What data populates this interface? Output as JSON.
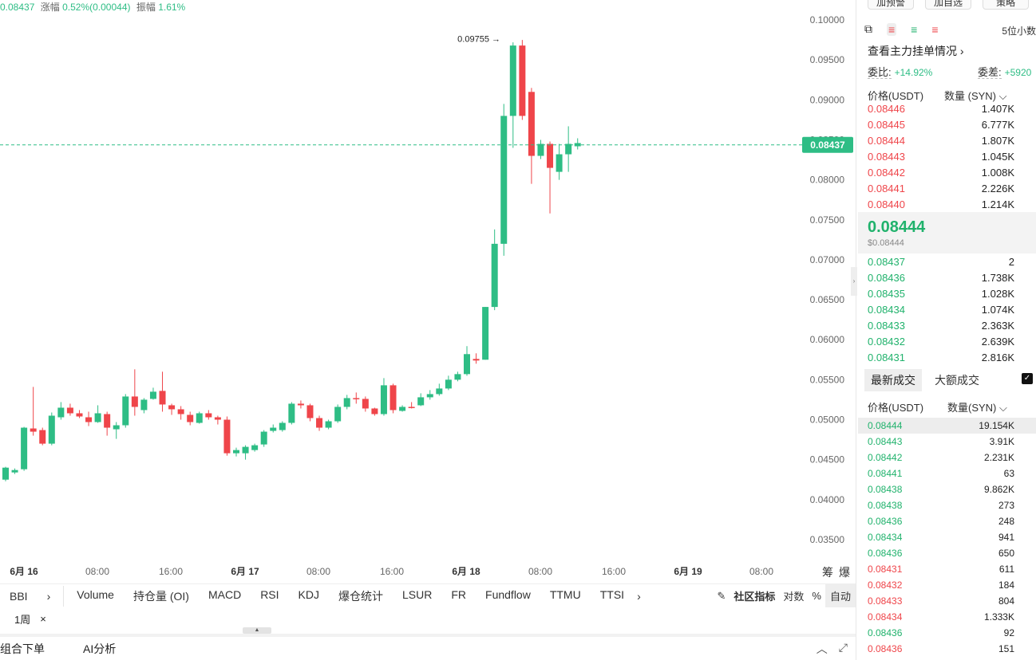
{
  "ticker": {
    "last_price": "0.08437",
    "change_label": "涨幅",
    "change_value": "0.52%(0.00044)",
    "amplitude_label": "振幅",
    "amplitude_value": "1.61%"
  },
  "chart": {
    "high_marker": "0.09755",
    "current_price_tag": "0.08437",
    "y_axis_labels": [
      "0.10000",
      "0.09500",
      "0.09000",
      "0.08500",
      "0.08000",
      "0.07500",
      "0.07000",
      "0.06500",
      "0.06000",
      "0.05500",
      "0.05000",
      "0.04500",
      "0.04000",
      "0.03500"
    ],
    "x_axis_labels": [
      {
        "text": "6月 16",
        "bold": true
      },
      {
        "text": "08:00",
        "bold": false
      },
      {
        "text": "16:00",
        "bold": false
      },
      {
        "text": "6月 17",
        "bold": true
      },
      {
        "text": "08:00",
        "bold": false
      },
      {
        "text": "16:00",
        "bold": false
      },
      {
        "text": "6月 18",
        "bold": true
      },
      {
        "text": "08:00",
        "bold": false
      },
      {
        "text": "16:00",
        "bold": false
      },
      {
        "text": "6月 19",
        "bold": true
      },
      {
        "text": "08:00",
        "bold": false
      }
    ],
    "axis_corner_labels": [
      "筹",
      "爆"
    ],
    "colors": {
      "up": "#2ebd85",
      "down": "#ef454a"
    }
  },
  "chart_data": {
    "type": "candlestick",
    "title": "",
    "y_range": [
      0.033,
      0.1015
    ],
    "series": [
      [
        0.0425,
        0.044,
        0.0423,
        0.0441
      ],
      [
        0.0434,
        0.0437,
        0.0432,
        0.0439
      ],
      [
        0.0438,
        0.049,
        0.0436,
        0.0491
      ],
      [
        0.0489,
        0.0485,
        0.048,
        0.0541
      ],
      [
        0.0487,
        0.047,
        0.0468,
        0.049
      ],
      [
        0.047,
        0.0505,
        0.0468,
        0.0509
      ],
      [
        0.0503,
        0.0515,
        0.05,
        0.0522
      ],
      [
        0.0515,
        0.0508,
        0.0505,
        0.052
      ],
      [
        0.0508,
        0.0504,
        0.0502,
        0.0512
      ],
      [
        0.0503,
        0.0497,
        0.0492,
        0.051
      ],
      [
        0.0497,
        0.0508,
        0.0496,
        0.0518
      ],
      [
        0.0507,
        0.049,
        0.048,
        0.051
      ],
      [
        0.0488,
        0.0493,
        0.0476,
        0.0497
      ],
      [
        0.0493,
        0.0529,
        0.049,
        0.0532
      ],
      [
        0.0529,
        0.0516,
        0.0505,
        0.0563
      ],
      [
        0.0512,
        0.0525,
        0.0508,
        0.0527
      ],
      [
        0.0526,
        0.0535,
        0.0525,
        0.054
      ],
      [
        0.0536,
        0.0519,
        0.051,
        0.056
      ],
      [
        0.0518,
        0.0513,
        0.0506,
        0.052
      ],
      [
        0.0513,
        0.0507,
        0.05,
        0.0517
      ],
      [
        0.0506,
        0.0497,
        0.0493,
        0.051
      ],
      [
        0.0496,
        0.0508,
        0.0495,
        0.051
      ],
      [
        0.0508,
        0.0503,
        0.05,
        0.0512
      ],
      [
        0.0503,
        0.05,
        0.0494,
        0.0505
      ],
      [
        0.05,
        0.0458,
        0.0455,
        0.0504
      ],
      [
        0.0458,
        0.0462,
        0.0454,
        0.0465
      ],
      [
        0.0458,
        0.0466,
        0.045,
        0.0468
      ],
      [
        0.0462,
        0.0468,
        0.046,
        0.047
      ],
      [
        0.0469,
        0.0485,
        0.0466,
        0.0487
      ],
      [
        0.0486,
        0.049,
        0.0484,
        0.0494
      ],
      [
        0.0487,
        0.0496,
        0.0485,
        0.0498
      ],
      [
        0.0496,
        0.052,
        0.0494,
        0.0522
      ],
      [
        0.052,
        0.0518,
        0.0514,
        0.0524
      ],
      [
        0.0518,
        0.0502,
        0.0498,
        0.052
      ],
      [
        0.0502,
        0.049,
        0.0486,
        0.0505
      ],
      [
        0.049,
        0.0498,
        0.0488,
        0.05
      ],
      [
        0.0498,
        0.0516,
        0.0496,
        0.0519
      ],
      [
        0.0516,
        0.0527,
        0.0513,
        0.0531
      ],
      [
        0.0527,
        0.0526,
        0.052,
        0.0534
      ],
      [
        0.0526,
        0.0514,
        0.051,
        0.0529
      ],
      [
        0.0514,
        0.0507,
        0.0505,
        0.0515
      ],
      [
        0.0507,
        0.0543,
        0.0505,
        0.0552
      ],
      [
        0.0543,
        0.0512,
        0.0508,
        0.0545
      ],
      [
        0.0511,
        0.0516,
        0.051,
        0.0518
      ],
      [
        0.0516,
        0.0515,
        0.0514,
        0.0522
      ],
      [
        0.0518,
        0.0528,
        0.0517,
        0.0533
      ],
      [
        0.0528,
        0.0532,
        0.0525,
        0.0537
      ],
      [
        0.0532,
        0.0539,
        0.053,
        0.0545
      ],
      [
        0.0539,
        0.055,
        0.0537,
        0.0555
      ],
      [
        0.055,
        0.0557,
        0.0548,
        0.056
      ],
      [
        0.0557,
        0.0582,
        0.0555,
        0.0592
      ],
      [
        0.0576,
        0.0574,
        0.057,
        0.0583
      ],
      [
        0.0575,
        0.0641,
        0.0575,
        0.0641
      ],
      [
        0.0641,
        0.072,
        0.0637,
        0.0738
      ],
      [
        0.072,
        0.088,
        0.0705,
        0.0895
      ],
      [
        0.088,
        0.0968,
        0.084,
        0.0972
      ],
      [
        0.0968,
        0.088,
        0.0875,
        0.0975
      ],
      [
        0.091,
        0.083,
        0.0795,
        0.0915
      ],
      [
        0.083,
        0.0845,
        0.0826,
        0.085
      ],
      [
        0.0845,
        0.0815,
        0.0758,
        0.0848
      ],
      [
        0.081,
        0.0832,
        0.08,
        0.0845
      ],
      [
        0.0832,
        0.0845,
        0.081,
        0.0867
      ],
      [
        0.0842,
        0.0846,
        0.0838,
        0.0852
      ]
    ]
  },
  "indicators": {
    "first": "BBI",
    "tabs": [
      "Volume",
      "持仓量 (OI)",
      "MACD",
      "RSI",
      "KDJ",
      "爆仓统计",
      "LSUR",
      "FR",
      "Fundflow",
      "TTMU",
      "TTSI"
    ],
    "community": "社区指标",
    "log_label": "对数",
    "percent_label": "%",
    "auto_label": "自动"
  },
  "period": {
    "value": "1周",
    "close": "×"
  },
  "bottom": {
    "combo_order": "组合下单",
    "ai_analysis": "AI分析"
  },
  "right_panel": {
    "top_buttons": [
      "加预警",
      "加自选",
      "策略"
    ],
    "decimals": "5位小数",
    "depth_link": "查看主力挂单情况 ›",
    "ratio_label": "委比:",
    "ratio_value": "+14.92%",
    "diff_label": "委差:",
    "diff_value": "+5920",
    "header_price": "价格(USDT)",
    "header_qty": "数量 (SYN) ⌵",
    "asks": [
      {
        "price": "0.08446",
        "qty": "1.407K"
      },
      {
        "price": "0.08445",
        "qty": "6.777K"
      },
      {
        "price": "0.08444",
        "qty": "1.807K"
      },
      {
        "price": "0.08443",
        "qty": "1.045K"
      },
      {
        "price": "0.08442",
        "qty": "1.008K"
      },
      {
        "price": "0.08441",
        "qty": "2.226K"
      },
      {
        "price": "0.08440",
        "qty": "1.214K"
      }
    ],
    "mid_price": "0.08444",
    "mid_usd": "$0.08444",
    "bids": [
      {
        "price": "0.08437",
        "qty": "2"
      },
      {
        "price": "0.08436",
        "qty": "1.738K"
      },
      {
        "price": "0.08435",
        "qty": "1.028K"
      },
      {
        "price": "0.08434",
        "qty": "1.074K"
      },
      {
        "price": "0.08433",
        "qty": "2.363K"
      },
      {
        "price": "0.08432",
        "qty": "2.639K"
      },
      {
        "price": "0.08431",
        "qty": "2.816K"
      }
    ],
    "trade_tab_latest": "最新成交",
    "trade_tab_large": "大额成交",
    "checkbox": "✓",
    "trades_header_price": "价格(USDT)",
    "trades_header_qty": "数量(SYN) ⌵",
    "trades": [
      {
        "price": "0.08444",
        "qty": "19.154K",
        "side": "buy"
      },
      {
        "price": "0.08443",
        "qty": "3.91K",
        "side": "buy"
      },
      {
        "price": "0.08442",
        "qty": "2.231K",
        "side": "buy"
      },
      {
        "price": "0.08441",
        "qty": "63",
        "side": "buy"
      },
      {
        "price": "0.08438",
        "qty": "9.862K",
        "side": "buy"
      },
      {
        "price": "0.08438",
        "qty": "273",
        "side": "buy"
      },
      {
        "price": "0.08436",
        "qty": "248",
        "side": "buy"
      },
      {
        "price": "0.08434",
        "qty": "941",
        "side": "buy"
      },
      {
        "price": "0.08436",
        "qty": "650",
        "side": "buy"
      },
      {
        "price": "0.08431",
        "qty": "611",
        "side": "sell"
      },
      {
        "price": "0.08432",
        "qty": "184",
        "side": "sell"
      },
      {
        "price": "0.08433",
        "qty": "804",
        "side": "sell"
      },
      {
        "price": "0.08434",
        "qty": "1.333K",
        "side": "sell"
      },
      {
        "price": "0.08436",
        "qty": "92",
        "side": "buy"
      },
      {
        "price": "0.08436",
        "qty": "151",
        "side": "sell"
      }
    ]
  }
}
